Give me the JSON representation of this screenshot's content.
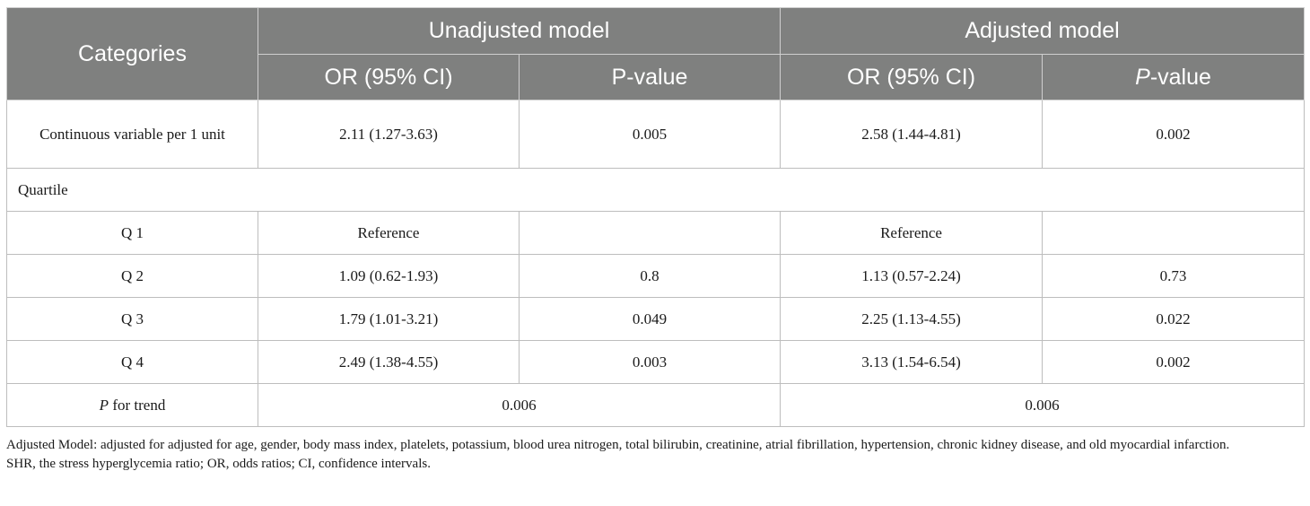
{
  "table": {
    "header": {
      "categories": "Categories",
      "group_unadjusted": "Unadjusted model",
      "group_adjusted": "Adjusted model",
      "or_ci": "OR (95% CI)",
      "pvalue_unadj": "P-value",
      "pvalue_adj_p": "P",
      "pvalue_adj_rest": "-value"
    },
    "rows": [
      {
        "label": "Continuous variable per 1 unit",
        "unadj_or": "2.11 (1.27-3.63)",
        "unadj_p": "0.005",
        "adj_or": "2.58 (1.44-4.81)",
        "adj_p": "0.002"
      },
      {
        "label": "Quartile"
      },
      {
        "label": "Q 1",
        "unadj_or": "Reference",
        "unadj_p": "",
        "adj_or": "Reference",
        "adj_p": ""
      },
      {
        "label": "Q 2",
        "unadj_or": "1.09 (0.62-1.93)",
        "unadj_p": "0.8",
        "adj_or": "1.13 (0.57-2.24)",
        "adj_p": "0.73"
      },
      {
        "label": "Q 3",
        "unadj_or": "1.79 (1.01-3.21)",
        "unadj_p": "0.049",
        "adj_or": "2.25 (1.13-4.55)",
        "adj_p": "0.022"
      },
      {
        "label": "Q 4",
        "unadj_or": "2.49 (1.38-4.55)",
        "unadj_p": "0.003",
        "adj_or": "3.13 (1.54-6.54)",
        "adj_p": "0.002"
      }
    ],
    "trend": {
      "label_p": "P",
      "label_rest": " for trend",
      "unadj": "0.006",
      "adj": "0.006"
    }
  },
  "footnotes": {
    "line1": "Adjusted Model: adjusted for adjusted for age, gender, body mass index, platelets, potassium, blood urea nitrogen, total bilirubin, creatinine, atrial fibrillation, hypertension, chronic kidney disease, and old myocardial infarction.",
    "line2": "SHR, the stress hyperglycemia ratio; OR, odds ratios; CI, confidence intervals."
  },
  "colors": {
    "header_bg": "#7f807f",
    "header_text": "#ffffff",
    "border": "#bdbdbd"
  }
}
